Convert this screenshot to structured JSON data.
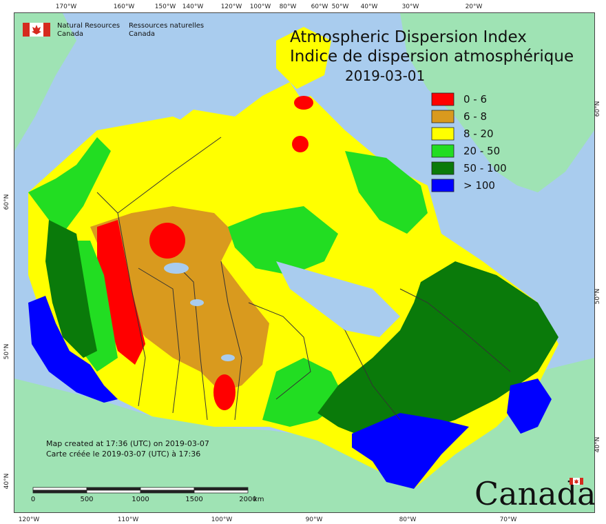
{
  "title_en": "Atmospheric Dispersion Index",
  "title_fr": "Indice de dispersion atmosphérique",
  "date": "2019-03-01",
  "agency_en_line1": "Natural Resources",
  "agency_en_line2": "Canada",
  "agency_fr_line1": "Ressources naturelles",
  "agency_fr_line2": "Canada",
  "legend": [
    {
      "label": "0 - 6",
      "color": "#ff0000"
    },
    {
      "label": "6 - 8",
      "color": "#d99a1e"
    },
    {
      "label": "8 - 20",
      "color": "#ffff00"
    },
    {
      "label": "20 - 50",
      "color": "#22dd22"
    },
    {
      "label": "50 - 100",
      "color": "#0a7a0a"
    },
    {
      "label": "> 100",
      "color": "#0000ff"
    }
  ],
  "credit_en": "Map created at 17:36 (UTC) on 2019-03-07",
  "credit_fr": "Carte créée le 2019-03-07 (UTC) à 17:36",
  "scalebar": {
    "labels": [
      "0",
      "500",
      "1000",
      "1500",
      "2000"
    ],
    "unit": "km"
  },
  "wordmark": "Canada",
  "top_ticks": [
    "170°W",
    "160°W",
    "150°W",
    "140°W",
    "120°W",
    "100°W",
    "80°W",
    "60°W",
    "50°W",
    "40°W",
    "30°W",
    "20°W"
  ],
  "bottom_ticks": [
    "120°W",
    "110°W",
    "100°W",
    "90°W",
    "80°W",
    "70°W"
  ],
  "left_ticks": [
    "60°N",
    "50°N",
    "40°N"
  ],
  "right_ticks": [
    "60°N",
    "50°N",
    "40°N"
  ],
  "colors": {
    "ocean": "#a9ccee",
    "land_outside": "#9fe3b4",
    "border": "#333333"
  }
}
